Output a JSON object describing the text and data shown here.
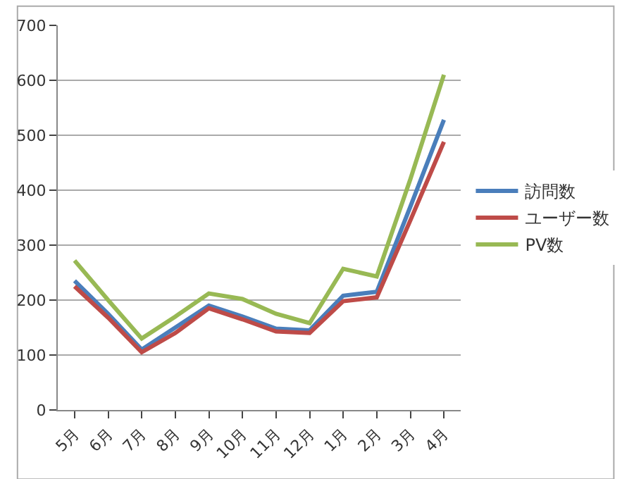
{
  "chart_data": {
    "type": "line",
    "categories": [
      "5月",
      "6月",
      "7月",
      "8月",
      "9月",
      "10月",
      "11月",
      "12月",
      "1月",
      "2月",
      "3月",
      "4月"
    ],
    "series": [
      {
        "name": "訪問数",
        "color": "#4a7ebb",
        "values": [
          235,
          175,
          110,
          150,
          190,
          170,
          148,
          145,
          208,
          215,
          370,
          528
        ]
      },
      {
        "name": "ユーザー数",
        "color": "#be4b48",
        "values": [
          225,
          168,
          105,
          140,
          185,
          165,
          143,
          140,
          198,
          205,
          345,
          488
        ]
      },
      {
        "name": "PV数",
        "color": "#98b954",
        "values": [
          272,
          200,
          130,
          170,
          212,
          202,
          175,
          158,
          257,
          243,
          420,
          610
        ]
      }
    ],
    "ylim": [
      0,
      700
    ],
    "yticks": [
      0,
      100,
      200,
      300,
      400,
      500,
      600,
      700
    ],
    "grid": "y",
    "legend": "right",
    "marker": "none",
    "line_style": "solid"
  }
}
